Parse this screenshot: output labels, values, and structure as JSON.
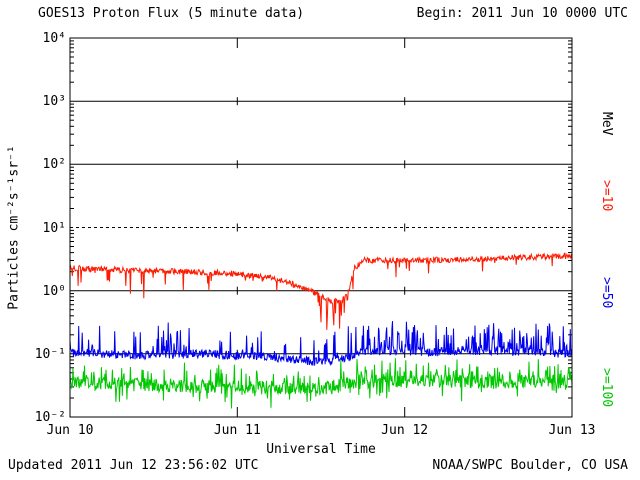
{
  "header": {
    "title": "GOES13 Proton Flux (5 minute data)",
    "begin": "Begin: 2011 Jun 10 0000 UTC"
  },
  "axes": {
    "y_title": "Particles cm⁻²s⁻¹sr⁻¹",
    "x_title": "Universal Time",
    "right_unit": "MeV",
    "y_tick_labels": [
      "10⁴",
      "10³",
      "10²",
      "10¹",
      "10⁰",
      "10⁻¹",
      "10⁻²"
    ],
    "x_tick_labels": [
      "Jun 10",
      "Jun 11",
      "Jun 12",
      "Jun 13"
    ]
  },
  "legend": {
    "ge10": ">=10",
    "ge50": ">=50",
    "ge100": ">=100"
  },
  "colors": {
    "ge10": "#fe1a00",
    "ge50": "#0000f0",
    "ge100": "#00c800",
    "axis": "#000000"
  },
  "footer": {
    "updated": "Updated 2011 Jun 12 23:56:02 UTC",
    "credit": "NOAA/SWPC Boulder, CO USA"
  },
  "chart_data": {
    "type": "line",
    "title": "GOES13 Proton Flux (5 minute data)",
    "xlabel": "Universal Time",
    "ylabel": "Particles cm⁻²s⁻¹sr⁻¹ (log scale)",
    "x_unit": "days since 2011 Jun 10 0000 UTC",
    "x_range_days": [
      0,
      3
    ],
    "x_tick_labels": [
      "Jun 10",
      "Jun 11",
      "Jun 12",
      "Jun 13"
    ],
    "y_scale": "log10",
    "y_range": [
      0.01,
      10000
    ],
    "y_tick_exponents": [
      4,
      3,
      2,
      1,
      0,
      -1,
      -2
    ],
    "hlines_solid_log10": [
      3,
      2,
      0,
      -1
    ],
    "hlines_dashed_log10": [
      1
    ],
    "grid": "horizontal decade lines; day-boundary tick crossings",
    "legend_position": "right-margin vertical labels",
    "sample_interval_minutes": 5,
    "series": [
      {
        "name": ">=10 MeV",
        "color_key": "ge10",
        "t_days": [
          0.0,
          0.3,
          0.6,
          1.0,
          1.2,
          1.35,
          1.45,
          1.55,
          1.62,
          1.66,
          1.7,
          1.75,
          2.0,
          2.3,
          2.6,
          3.0
        ],
        "log10_flux": [
          0.36,
          0.33,
          0.31,
          0.27,
          0.2,
          0.1,
          -0.02,
          -0.16,
          -0.18,
          -0.05,
          0.35,
          0.48,
          0.48,
          0.49,
          0.52,
          0.55
        ],
        "events_t_log10": [
          [
            0.36,
            -0.05
          ],
          [
            0.44,
            -0.12
          ],
          [
            1.5,
            -0.5
          ],
          [
            1.535,
            -0.62
          ],
          [
            1.575,
            -0.55
          ],
          [
            1.61,
            -0.6
          ],
          [
            1.64,
            -0.35
          ]
        ],
        "render": {
          "noise": 0.045,
          "down_prob": [
            [
              0,
              0.07
            ],
            [
              1.45,
              0.12
            ],
            [
              1.7,
              0.04
            ]
          ],
          "down_max": 0.28
        }
      },
      {
        "name": ">=50 MeV",
        "color_key": "ge50",
        "t_days": [
          0.0,
          0.4,
          0.8,
          1.2,
          1.45,
          1.6,
          1.72,
          1.8,
          2.2,
          2.6,
          3.0
        ],
        "log10_flux": [
          -0.98,
          -1.02,
          -1.0,
          -1.05,
          -1.12,
          -1.1,
          -1.0,
          -0.95,
          -0.97,
          -0.95,
          -1.0
        ],
        "events_t_log10": [],
        "render": {
          "noise": 0.07,
          "up_prob": [
            [
              0,
              0.12
            ],
            [
              1.7,
              0.3
            ]
          ],
          "up_max": 0.45
        }
      },
      {
        "name": ">=100 MeV",
        "color_key": "ge100",
        "t_days": [
          0.0,
          0.5,
          1.0,
          1.5,
          1.75,
          2.2,
          2.6,
          3.0
        ],
        "log10_flux": [
          -1.45,
          -1.5,
          -1.52,
          -1.55,
          -1.45,
          -1.42,
          -1.45,
          -1.43
        ],
        "events_t_log10": [],
        "render": {
          "noise": 0.11,
          "up_prob": [
            [
              0,
              0.18
            ],
            [
              1.7,
              0.25
            ]
          ],
          "up_max": 0.3,
          "down_prob": [
            [
              0,
              0.08
            ]
          ],
          "down_max": 0.25
        }
      }
    ]
  }
}
